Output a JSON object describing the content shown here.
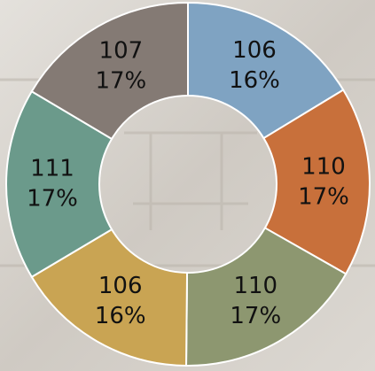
{
  "chart_data": {
    "type": "donut",
    "values": [
      106,
      110,
      110,
      106,
      111,
      107
    ],
    "percent_labels": [
      "16%",
      "17%",
      "17%",
      "16%",
      "17%",
      "17%"
    ],
    "colors": [
      "#7fa3c2",
      "#c8703b",
      "#8d9770",
      "#c9a453",
      "#6b9a8b",
      "#847a74"
    ]
  }
}
